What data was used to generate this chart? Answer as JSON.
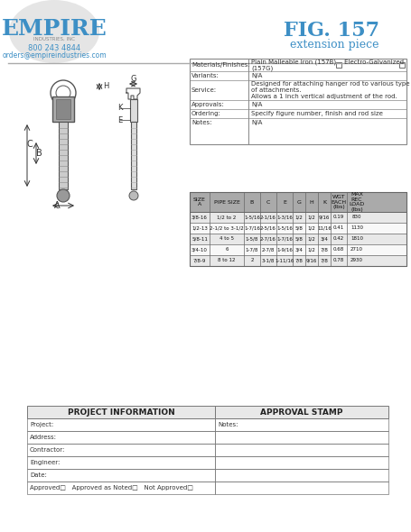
{
  "title_fig": "FIG. 157",
  "title_sub": "extension piece",
  "company": "EMPIRE",
  "sub_company": "INDUSTRIES, INC",
  "phone": "800 243 4844",
  "email": "orders@empireindustries.com",
  "header_color": "#3d8fc5",
  "header_text_color": "#3d8fc5",
  "bg_color": "#ffffff",
  "spec_table": {
    "rows": [
      [
        "Materials/Finishes:",
        "Plain Malleable Iron (157B)    Electro-Galvanized (157G)"
      ],
      [
        "Variants:",
        "N/A"
      ],
      [
        "Service:",
        "Designed for attaching hanger rod to various type of attachments.\nAllows a 1 inch vertical adjustment of the rod."
      ],
      [
        "Approvals:",
        "N/A"
      ],
      [
        "Ordering:",
        "Specify figure number, finish and rod size"
      ],
      [
        "Notes:",
        "N/A"
      ]
    ]
  },
  "data_table": {
    "headers": [
      "SIZE\nA",
      "PIPE SIZE",
      "B",
      "C",
      "E",
      "G",
      "H",
      "K",
      "WGT\nEACH\n(lbs)",
      "MAX\nREC\nLOAD\n(lbs)"
    ],
    "rows": [
      [
        "3/8-16",
        "1/2 to 2",
        "1-5/16",
        "2-1/16",
        "1-3/16",
        "1/2",
        "1/2",
        "9/16",
        "0.19",
        "830"
      ],
      [
        "1/2-13",
        "2-1/2 to 3-1/2",
        "1-7/16",
        "2-5/16",
        "1-5/16",
        "5/8",
        "1/2",
        "11/16",
        "0.41",
        "1130"
      ],
      [
        "5/8-11",
        "4 to 5",
        "1-5/8",
        "2-7/16",
        "1-7/16",
        "5/8",
        "1/2",
        "3/4",
        "0.42",
        "1810"
      ],
      [
        "3/4-10",
        "6",
        "1-7/8",
        "2-7/8",
        "1-9/16",
        "3/4",
        "1/2",
        "7/8",
        "0.68",
        "2710"
      ],
      [
        "7/8-9",
        "8 to 12",
        "2",
        "3-1/8",
        "1-11/16",
        "7/8",
        "9/16",
        "7/8",
        "0.78",
        "2930"
      ]
    ]
  },
  "proj_table": {
    "left_header": "PROJECT INFORMATION",
    "right_header": "APPROVAL STAMP",
    "left_rows": [
      "Project:",
      "Address:",
      "Contractor:",
      "Engineer:",
      "Date:",
      "Approved□   Approved as Noted□   Not Approved□"
    ],
    "right_rows": [
      "Notes:",
      "",
      "",
      "",
      "",
      ""
    ]
  }
}
